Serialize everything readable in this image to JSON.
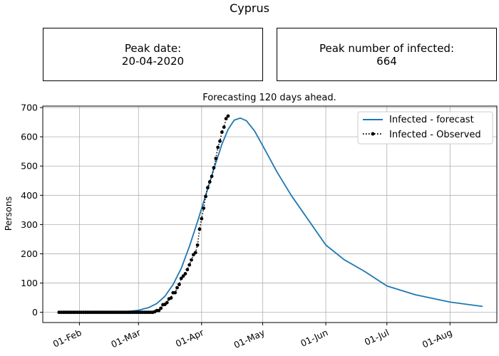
{
  "page_title": "Cyprus",
  "info": {
    "peak_date_label": "Peak date:",
    "peak_date_value": "20-04-2020",
    "peak_infected_label": "Peak number of infected:",
    "peak_infected_value": "664"
  },
  "colors": {
    "forecast": "#1f77b4",
    "observed": "#000000",
    "grid": "#b0b0b0"
  },
  "chart_data": {
    "type": "line",
    "title": "Forecasting 120 days ahead.",
    "xlabel": "",
    "ylabel": "Persons",
    "ylim": [
      -35,
      705
    ],
    "xlim": [
      "2020-01-14",
      "2020-08-24"
    ],
    "grid": true,
    "legend_position": "top-right",
    "y_ticks": [
      0,
      100,
      200,
      300,
      400,
      500,
      600,
      700
    ],
    "x_ticks": [
      {
        "date": "2020-02-01",
        "label": "01-Feb"
      },
      {
        "date": "2020-03-01",
        "label": "01-Mar"
      },
      {
        "date": "2020-04-01",
        "label": "01-Apr"
      },
      {
        "date": "2020-05-01",
        "label": "01-May"
      },
      {
        "date": "2020-06-01",
        "label": "01-Jun"
      },
      {
        "date": "2020-07-01",
        "label": "01-Jul"
      },
      {
        "date": "2020-08-01",
        "label": "01-Aug"
      }
    ],
    "series": [
      {
        "name": "Infected - forecast",
        "style": "solid",
        "points": [
          [
            "2020-01-22",
            0
          ],
          [
            "2020-02-10",
            0
          ],
          [
            "2020-02-20",
            1
          ],
          [
            "2020-02-25",
            3
          ],
          [
            "2020-03-01",
            7
          ],
          [
            "2020-03-06",
            16
          ],
          [
            "2020-03-10",
            30
          ],
          [
            "2020-03-14",
            55
          ],
          [
            "2020-03-18",
            95
          ],
          [
            "2020-03-22",
            150
          ],
          [
            "2020-03-26",
            225
          ],
          [
            "2020-03-30",
            310
          ],
          [
            "2020-04-03",
            400
          ],
          [
            "2020-04-07",
            490
          ],
          [
            "2020-04-11",
            575
          ],
          [
            "2020-04-14",
            625
          ],
          [
            "2020-04-17",
            657
          ],
          [
            "2020-04-20",
            664
          ],
          [
            "2020-04-23",
            655
          ],
          [
            "2020-04-27",
            620
          ],
          [
            "2020-05-01",
            570
          ],
          [
            "2020-05-08",
            480
          ],
          [
            "2020-05-15",
            400
          ],
          [
            "2020-05-22",
            330
          ],
          [
            "2020-06-01",
            230
          ],
          [
            "2020-06-10",
            180
          ],
          [
            "2020-06-20",
            140
          ],
          [
            "2020-07-01",
            90
          ],
          [
            "2020-07-15",
            60
          ],
          [
            "2020-08-01",
            35
          ],
          [
            "2020-08-17",
            20
          ]
        ]
      },
      {
        "name": "Infected - Observed",
        "style": "dotted-markers",
        "points": [
          [
            "2020-01-22",
            0
          ],
          [
            "2020-01-23",
            0
          ],
          [
            "2020-01-24",
            0
          ],
          [
            "2020-01-25",
            0
          ],
          [
            "2020-01-26",
            0
          ],
          [
            "2020-01-27",
            0
          ],
          [
            "2020-01-28",
            0
          ],
          [
            "2020-01-29",
            0
          ],
          [
            "2020-01-30",
            0
          ],
          [
            "2020-01-31",
            0
          ],
          [
            "2020-02-01",
            0
          ],
          [
            "2020-02-02",
            0
          ],
          [
            "2020-02-03",
            0
          ],
          [
            "2020-02-04",
            0
          ],
          [
            "2020-02-05",
            0
          ],
          [
            "2020-02-06",
            0
          ],
          [
            "2020-02-07",
            0
          ],
          [
            "2020-02-08",
            0
          ],
          [
            "2020-02-09",
            0
          ],
          [
            "2020-02-10",
            0
          ],
          [
            "2020-02-11",
            0
          ],
          [
            "2020-02-12",
            0
          ],
          [
            "2020-02-13",
            0
          ],
          [
            "2020-02-14",
            0
          ],
          [
            "2020-02-15",
            0
          ],
          [
            "2020-02-16",
            0
          ],
          [
            "2020-02-17",
            0
          ],
          [
            "2020-02-18",
            0
          ],
          [
            "2020-02-19",
            0
          ],
          [
            "2020-02-20",
            0
          ],
          [
            "2020-02-21",
            0
          ],
          [
            "2020-02-22",
            0
          ],
          [
            "2020-02-23",
            0
          ],
          [
            "2020-02-24",
            0
          ],
          [
            "2020-02-25",
            0
          ],
          [
            "2020-02-26",
            0
          ],
          [
            "2020-02-27",
            0
          ],
          [
            "2020-02-28",
            0
          ],
          [
            "2020-02-29",
            0
          ],
          [
            "2020-03-01",
            0
          ],
          [
            "2020-03-02",
            0
          ],
          [
            "2020-03-03",
            0
          ],
          [
            "2020-03-04",
            0
          ],
          [
            "2020-03-05",
            0
          ],
          [
            "2020-03-06",
            0
          ],
          [
            "2020-03-07",
            0
          ],
          [
            "2020-03-08",
            0
          ],
          [
            "2020-03-09",
            2
          ],
          [
            "2020-03-10",
            6
          ],
          [
            "2020-03-11",
            6
          ],
          [
            "2020-03-12",
            14
          ],
          [
            "2020-03-13",
            26
          ],
          [
            "2020-03-14",
            27
          ],
          [
            "2020-03-15",
            33
          ],
          [
            "2020-03-16",
            46
          ],
          [
            "2020-03-17",
            49
          ],
          [
            "2020-03-18",
            67
          ],
          [
            "2020-03-19",
            67
          ],
          [
            "2020-03-20",
            84
          ],
          [
            "2020-03-21",
            95
          ],
          [
            "2020-03-22",
            116
          ],
          [
            "2020-03-23",
            124
          ],
          [
            "2020-03-24",
            132
          ],
          [
            "2020-03-25",
            146
          ],
          [
            "2020-03-26",
            162
          ],
          [
            "2020-03-27",
            179
          ],
          [
            "2020-03-28",
            197
          ],
          [
            "2020-03-29",
            204
          ],
          [
            "2020-03-30",
            230
          ],
          [
            "2020-03-31",
            284
          ],
          [
            "2020-04-01",
            320
          ],
          [
            "2020-04-02",
            356
          ],
          [
            "2020-04-03",
            396
          ],
          [
            "2020-04-04",
            426
          ],
          [
            "2020-04-05",
            446
          ],
          [
            "2020-04-06",
            465
          ],
          [
            "2020-04-07",
            494
          ],
          [
            "2020-04-08",
            526
          ],
          [
            "2020-04-09",
            564
          ],
          [
            "2020-04-10",
            585
          ],
          [
            "2020-04-11",
            616
          ],
          [
            "2020-04-12",
            633
          ],
          [
            "2020-04-13",
            662
          ],
          [
            "2020-04-14",
            671
          ]
        ]
      }
    ]
  }
}
